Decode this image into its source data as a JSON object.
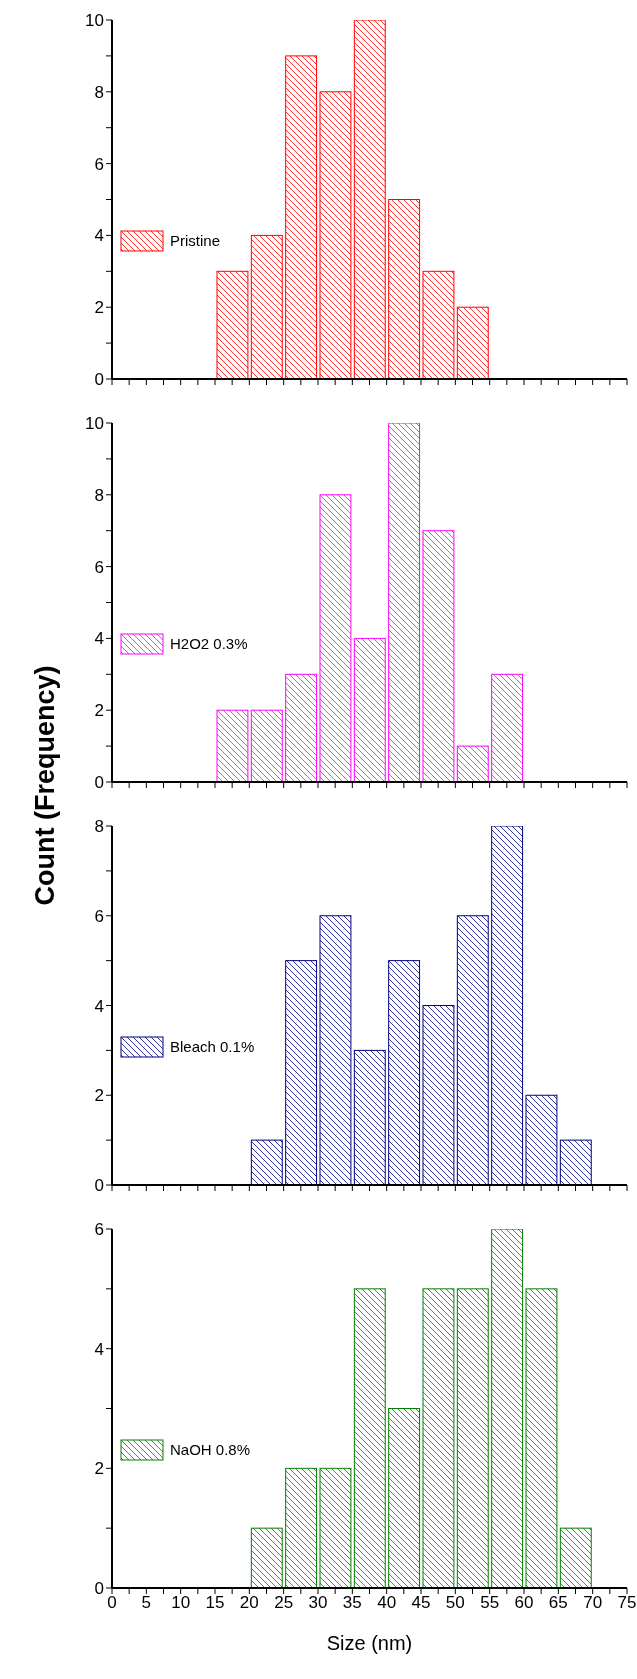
{
  "chart_data": [
    {
      "type": "histogram",
      "bins": [
        15,
        20,
        25,
        30,
        35,
        40,
        45,
        50,
        55
      ],
      "series": [
        {
          "name": "Pristine",
          "color": "#ff0000",
          "values": [
            3,
            4,
            9,
            8,
            10,
            5,
            3,
            2
          ]
        }
      ],
      "xlim": [
        0,
        75
      ],
      "xticks": [
        0,
        {
          "value": 2.5,
          "label": null
        },
        5,
        {
          "value": 7.5,
          "label": null
        },
        10,
        {
          "value": 12.5,
          "label": null
        },
        15,
        {
          "value": 17.5,
          "label": null
        },
        20,
        {
          "value": 22.5,
          "label": null
        },
        25,
        {
          "value": 27.5,
          "label": null
        },
        30,
        {
          "value": 32.5,
          "label": null
        },
        35,
        {
          "value": 37.5,
          "label": null
        },
        40,
        {
          "value": 42.5,
          "label": null
        },
        45,
        {
          "value": 47.5,
          "label": null
        },
        50,
        {
          "value": 52.5,
          "label": null
        },
        55,
        {
          "value": 57.5,
          "label": null
        },
        60,
        {
          "value": 62.5,
          "label": null
        },
        65,
        {
          "value": 67.5,
          "label": null
        },
        70,
        {
          "value": 72.5,
          "label": null
        },
        75
      ],
      "ylim": [
        0,
        10
      ],
      "yticks": [
        0,
        {
          "value": 1,
          "label": null
        },
        2,
        {
          "value": 3,
          "label": null
        },
        4,
        {
          "value": 5,
          "label": null
        },
        6,
        {
          "value": 7,
          "label": null
        },
        8,
        {
          "value": 9,
          "label": null
        },
        10
      ],
      "tick_labels": "y",
      "legend": "left"
    },
    {
      "type": "histogram",
      "ylabel": "Count (Frequency)",
      "bins": [
        15,
        20,
        25,
        30,
        35,
        40,
        45,
        50,
        55,
        60
      ],
      "series": [
        {
          "name": "H2O2 0.3%",
          "color": "#ff00ff",
          "values": [
            2,
            2,
            3,
            8,
            4,
            10,
            7,
            1,
            3
          ]
        }
      ],
      "xlim": [
        0,
        75
      ],
      "xticks": [
        0,
        {
          "value": 2.5,
          "label": null
        },
        5,
        {
          "value": 7.5,
          "label": null
        },
        10,
        {
          "value": 12.5,
          "label": null
        },
        15,
        {
          "value": 17.5,
          "label": null
        },
        20,
        {
          "value": 22.5,
          "label": null
        },
        25,
        {
          "value": 27.5,
          "label": null
        },
        30,
        {
          "value": 32.5,
          "label": null
        },
        35,
        {
          "value": 37.5,
          "label": null
        },
        40,
        {
          "value": 42.5,
          "label": null
        },
        45,
        {
          "value": 47.5,
          "label": null
        },
        50,
        {
          "value": 52.5,
          "label": null
        },
        55,
        {
          "value": 57.5,
          "label": null
        },
        60,
        {
          "value": 62.5,
          "label": null
        },
        65,
        {
          "value": 67.5,
          "label": null
        },
        70,
        {
          "value": 72.5,
          "label": null
        },
        75
      ],
      "ylim": [
        0,
        10
      ],
      "yticks": [
        0,
        {
          "value": 1,
          "label": null
        },
        2,
        {
          "value": 3,
          "label": null
        },
        4,
        {
          "value": 5,
          "label": null
        },
        6,
        {
          "value": 7,
          "label": null
        },
        8,
        {
          "value": 9,
          "label": null
        },
        10
      ],
      "tick_labels": "y",
      "legend": "left"
    },
    {
      "type": "histogram",
      "bins": [
        20,
        25,
        30,
        35,
        40,
        45,
        50,
        55,
        60,
        65,
        70
      ],
      "series": [
        {
          "name": "Bleach 0.1%",
          "color": "#000080",
          "values": [
            1,
            5,
            6,
            3,
            5,
            4,
            6,
            8,
            2,
            1
          ]
        }
      ],
      "xlim": [
        0,
        75
      ],
      "xticks": [
        0,
        {
          "value": 2.5,
          "label": null
        },
        5,
        {
          "value": 7.5,
          "label": null
        },
        10,
        {
          "value": 12.5,
          "label": null
        },
        15,
        {
          "value": 17.5,
          "label": null
        },
        20,
        {
          "value": 22.5,
          "label": null
        },
        25,
        {
          "value": 27.5,
          "label": null
        },
        30,
        {
          "value": 32.5,
          "label": null
        },
        35,
        {
          "value": 37.5,
          "label": null
        },
        40,
        {
          "value": 42.5,
          "label": null
        },
        45,
        {
          "value": 47.5,
          "label": null
        },
        50,
        {
          "value": 52.5,
          "label": null
        },
        55,
        {
          "value": 57.5,
          "label": null
        },
        60,
        {
          "value": 62.5,
          "label": null
        },
        65,
        {
          "value": 67.5,
          "label": null
        },
        70,
        {
          "value": 72.5,
          "label": null
        },
        75
      ],
      "ylim": [
        0,
        8
      ],
      "yticks": [
        0,
        {
          "value": 1,
          "label": null
        },
        2,
        {
          "value": 3,
          "label": null
        },
        4,
        {
          "value": 5,
          "label": null
        },
        6,
        {
          "value": 7,
          "label": null
        },
        8
      ],
      "tick_labels": "y",
      "legend": "left"
    },
    {
      "type": "histogram",
      "xlabel": "Size (nm)",
      "bins": [
        20,
        25,
        30,
        35,
        40,
        45,
        50,
        55,
        60,
        65,
        70
      ],
      "series": [
        {
          "name": "NaOH 0.8%",
          "color": "#008000",
          "values": [
            1,
            2,
            2,
            5,
            3,
            5,
            5,
            6,
            5,
            1
          ]
        }
      ],
      "xlim": [
        0,
        75
      ],
      "xticks": [
        0,
        {
          "value": 2.5,
          "label": null
        },
        5,
        {
          "value": 7.5,
          "label": null
        },
        10,
        {
          "value": 12.5,
          "label": null
        },
        15,
        {
          "value": 17.5,
          "label": null
        },
        20,
        {
          "value": 22.5,
          "label": null
        },
        25,
        {
          "value": 27.5,
          "label": null
        },
        30,
        {
          "value": 32.5,
          "label": null
        },
        35,
        {
          "value": 37.5,
          "label": null
        },
        40,
        {
          "value": 42.5,
          "label": null
        },
        45,
        {
          "value": 47.5,
          "label": null
        },
        50,
        {
          "value": 52.5,
          "label": null
        },
        55,
        {
          "value": 57.5,
          "label": null
        },
        60,
        {
          "value": 62.5,
          "label": null
        },
        65,
        {
          "value": 67.5,
          "label": null
        },
        70,
        {
          "value": 72.5,
          "label": null
        },
        75
      ],
      "ylim": [
        0,
        6
      ],
      "yticks": [
        0,
        {
          "value": 1,
          "label": null
        },
        2,
        {
          "value": 3,
          "label": null
        },
        4,
        {
          "value": 5,
          "label": null
        },
        6
      ],
      "legend": "left"
    }
  ]
}
